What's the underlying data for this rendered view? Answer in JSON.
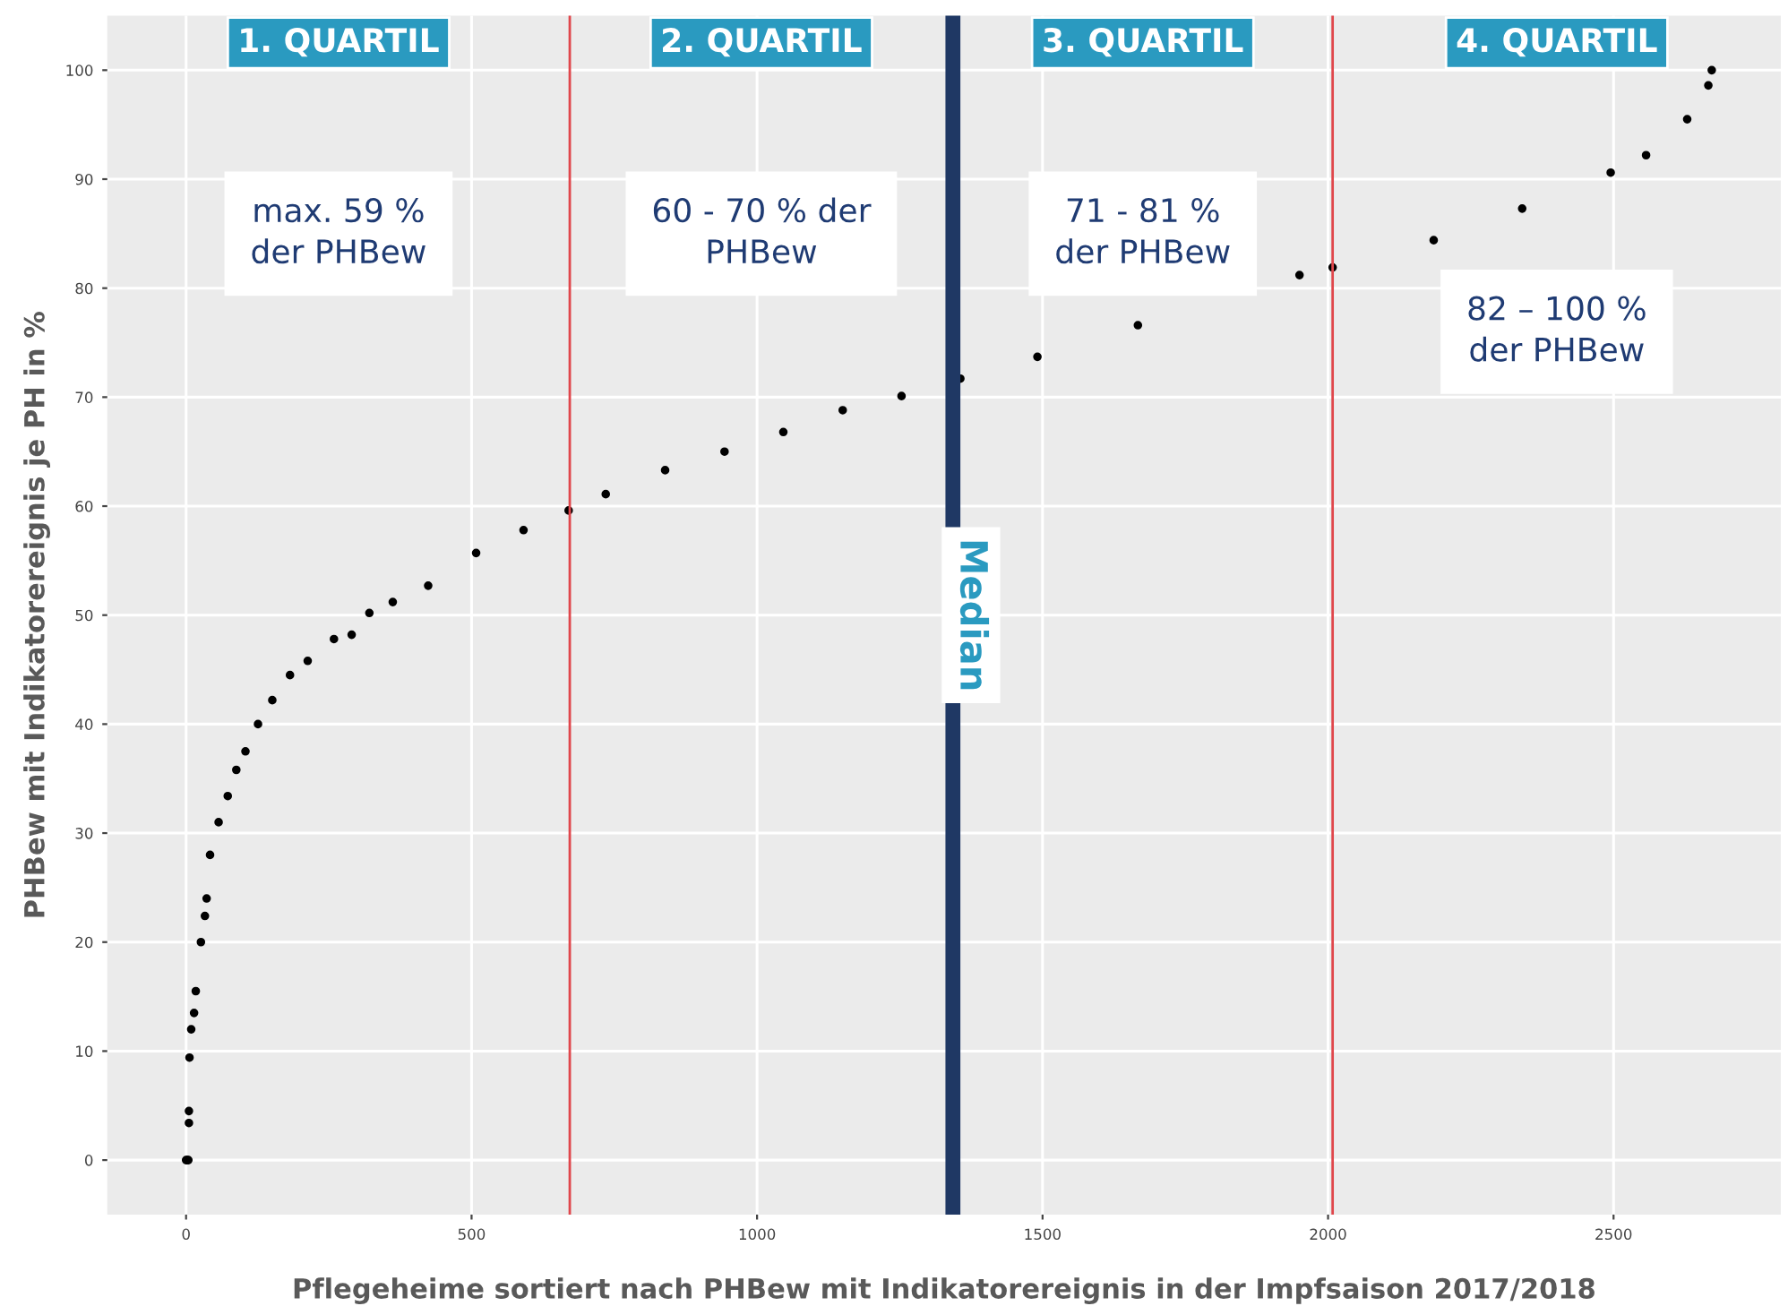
{
  "chart_data": {
    "type": "scatter",
    "xlabel": "Pflegeheime sortiert nach PHBew mit Indikatorereignis in der Impfsaison 2017/2018",
    "ylabel": "PHBew mit Indikatorereignis je PH in %",
    "series": [
      {
        "color": "#000000",
        "x": [
          0,
          2,
          4,
          5,
          5,
          6,
          9,
          14,
          17,
          26,
          33,
          36,
          42,
          57,
          73,
          88,
          104,
          126,
          151,
          182,
          213,
          259,
          290,
          321,
          362,
          424,
          508,
          591,
          670,
          735,
          839,
          943,
          1046,
          1150,
          1253,
          1356,
          1491,
          1667,
          1950,
          2008,
          2185,
          2340,
          2495,
          2557,
          2629,
          2666,
          2672
        ],
        "values": [
          0,
          0,
          0,
          3.4,
          4.5,
          9.4,
          12,
          13.5,
          15.5,
          20,
          22.4,
          24,
          28,
          31,
          33.4,
          35.8,
          37.5,
          40,
          42.2,
          44.5,
          45.8,
          47.8,
          48.2,
          50.2,
          51.2,
          52.7,
          55.7,
          57.8,
          59.6,
          61.1,
          63.3,
          65,
          66.8,
          68.8,
          70.1,
          71.7,
          73.7,
          76.6,
          81.2,
          81.9,
          84.4,
          87.3,
          90.6,
          92.2,
          95.5,
          98.6,
          100
        ]
      }
    ],
    "marker": "circle",
    "xlim": [
      -138,
      2793
    ],
    "ylim": [
      -5,
      105
    ],
    "xticks": [
      0,
      500,
      1000,
      1500,
      2000,
      2500
    ],
    "yticks": [
      0,
      10,
      20,
      30,
      40,
      50,
      60,
      70,
      80,
      90,
      100
    ],
    "grid": true,
    "ref_lines": [
      {
        "axis": "x",
        "value": 672,
        "color": "#e0474c"
      },
      {
        "axis": "x",
        "value": 1343,
        "color": "#1f3864",
        "label": "Median"
      },
      {
        "axis": "x",
        "value": 2008,
        "color": "#e0474c"
      }
    ],
    "annotations": [
      "1. QUARTIL",
      "2. QUARTIL",
      "3. QUARTIL",
      "4. QUARTIL",
      "max. 59 %\nder PHBew",
      "60 - 70 % der\nPHBew",
      "71 - 81 %\nder PHBew",
      "82 – 100 %\nder PHBew"
    ]
  }
}
